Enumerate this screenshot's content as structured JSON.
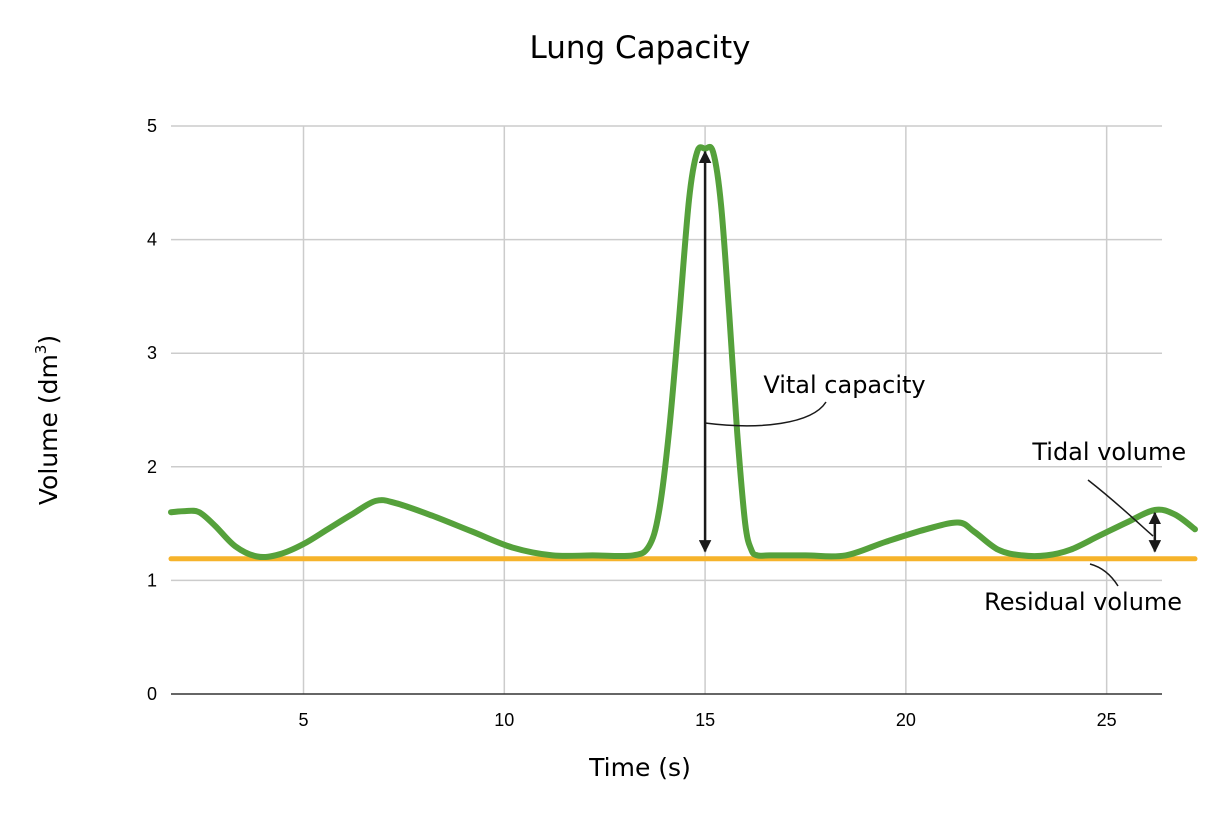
{
  "chart_data": {
    "type": "line",
    "title": "Lung Capacity",
    "xlabel": "Time (s)",
    "ylabel": {
      "text": "Volume (dm",
      "sup": "3",
      "close": ")"
    },
    "xlim": [
      1.7,
      27.2
    ],
    "ylim": [
      0,
      5
    ],
    "xticks": [
      5,
      10,
      15,
      20,
      25
    ],
    "yticks": [
      0,
      1,
      2,
      3,
      4,
      5
    ],
    "grid": true,
    "series": [
      {
        "color": "#55a13b",
        "smooth": true,
        "x": [
          1.7,
          2.05,
          2.4,
          2.8,
          3.3,
          3.85,
          4.4,
          5.0,
          5.6,
          6.2,
          6.8,
          7.3,
          8.2,
          9.2,
          10.2,
          11.2,
          12.2,
          13.2,
          13.6,
          13.85,
          14.1,
          14.35,
          14.6,
          14.8,
          15.0,
          15.2,
          15.4,
          15.6,
          15.8,
          16.0,
          16.15,
          16.3,
          16.6,
          17.5,
          18.5,
          19.5,
          20.5,
          21.3,
          21.7,
          22.3,
          22.9,
          23.5,
          24.1,
          24.8,
          25.5,
          26.2,
          26.7,
          27.2
        ],
        "y": [
          1.6,
          1.61,
          1.6,
          1.48,
          1.3,
          1.21,
          1.23,
          1.32,
          1.45,
          1.58,
          1.7,
          1.68,
          1.57,
          1.43,
          1.29,
          1.22,
          1.22,
          1.22,
          1.3,
          1.6,
          2.3,
          3.3,
          4.35,
          4.77,
          4.8,
          4.77,
          4.3,
          3.35,
          2.3,
          1.5,
          1.27,
          1.22,
          1.22,
          1.22,
          1.22,
          1.34,
          1.45,
          1.51,
          1.43,
          1.27,
          1.22,
          1.22,
          1.27,
          1.39,
          1.51,
          1.62,
          1.58,
          1.45
        ]
      },
      {
        "color": "#f6b32b",
        "x": [
          1.7,
          27.2
        ],
        "y": [
          1.19,
          1.19
        ]
      }
    ],
    "annotations": [
      {
        "text": "Vital capacity",
        "x": 16.45,
        "y": 2.65,
        "arrow_x": 15.0,
        "arrow_from": 1.22,
        "arrow_to": 4.8
      },
      {
        "text": "Tidal volume",
        "x": 23.15,
        "y": 2.06,
        "arrow_x": 26.2,
        "arrow_from": 1.22,
        "arrow_to": 1.62
      },
      {
        "text": "Residual volume",
        "x": 21.95,
        "y": 0.74
      }
    ]
  }
}
